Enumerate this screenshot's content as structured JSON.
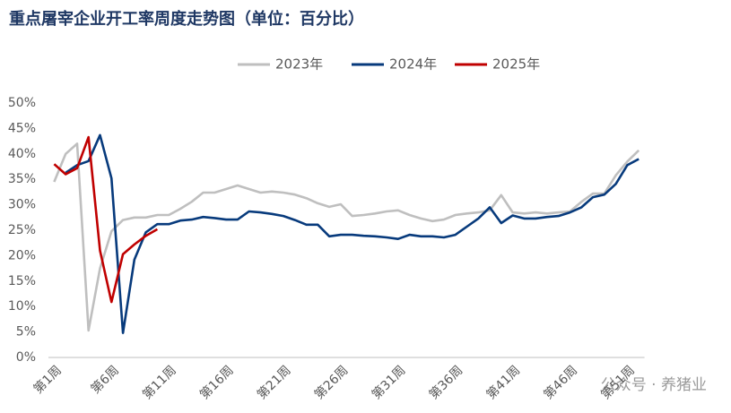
{
  "chart_data": {
    "type": "line",
    "title": "重点屠宰企业开工率周度走势图（单位：百分比）",
    "watermark": "公众号 · 养猪业",
    "categories": [
      "第1周",
      null,
      null,
      null,
      null,
      "第6周",
      null,
      null,
      null,
      null,
      "第11周",
      null,
      null,
      null,
      null,
      "第16周",
      null,
      null,
      null,
      null,
      "第21周",
      null,
      null,
      null,
      null,
      "第26周",
      null,
      null,
      null,
      null,
      "第31周",
      null,
      null,
      null,
      null,
      "第36周",
      null,
      null,
      null,
      null,
      "第41周",
      null,
      null,
      null,
      null,
      "第46周",
      null,
      null,
      null,
      null,
      "第51周",
      null
    ],
    "series": [
      {
        "name": "2023年",
        "color": "#bfbfbf",
        "values": [
          34.5,
          40,
          42,
          5.3,
          17.5,
          24.8,
          27,
          27.5,
          27.5,
          28,
          28,
          29.2,
          30.6,
          32.4,
          32.4,
          33.1,
          33.8,
          33.1,
          32.4,
          32.6,
          32.4,
          32,
          31.3,
          30.3,
          29.6,
          30.1,
          27.8,
          28,
          28.3,
          28.7,
          28.9,
          28,
          27.3,
          26.8,
          27.1,
          28,
          28.3,
          28.5,
          28.9,
          31.9,
          28.5,
          28.3,
          28.5,
          28.3,
          28.5,
          28.7,
          30.6,
          32.2,
          32.2,
          35.8,
          38.5,
          40.7
        ]
      },
      {
        "name": "2024年",
        "color": "#073a7c",
        "values": [
          null,
          36.3,
          37.8,
          38.6,
          43.7,
          35.2,
          4.8,
          19.2,
          24.6,
          26.2,
          26.2,
          26.9,
          27.1,
          27.6,
          27.4,
          27.1,
          27.1,
          28.7,
          28.5,
          28.2,
          27.8,
          27,
          26.1,
          26.1,
          23.8,
          24.1,
          24.1,
          23.9,
          23.8,
          23.6,
          23.3,
          24.1,
          23.8,
          23.8,
          23.6,
          24.1,
          25.7,
          27.3,
          29.5,
          26.4,
          27.9,
          27.3,
          27.3,
          27.6,
          27.8,
          28.5,
          29.5,
          31.5,
          32,
          34.1,
          37.8,
          39
        ]
      },
      {
        "name": "2025年",
        "color": "#c00000",
        "values": [
          38,
          36,
          37.2,
          43.3,
          21,
          10.9,
          20.3,
          22.2,
          23.9,
          25.2,
          null,
          null,
          null,
          null,
          null,
          null,
          null,
          null,
          null,
          null,
          null,
          null,
          null,
          null,
          null,
          null,
          null,
          null,
          null,
          null,
          null,
          null,
          null,
          null,
          null,
          null,
          null,
          null,
          null,
          null,
          null,
          null,
          null,
          null,
          null,
          null,
          null,
          null,
          null,
          null,
          null,
          null
        ]
      }
    ],
    "ylim": [
      0,
      50
    ],
    "yticks": [
      {
        "value": 0,
        "label": "0%"
      },
      {
        "value": 5,
        "label": "5%"
      },
      {
        "value": 10,
        "label": "10%"
      },
      {
        "value": 15,
        "label": "15%"
      },
      {
        "value": 20,
        "label": "20%"
      },
      {
        "value": 25,
        "label": "25%"
      },
      {
        "value": 30,
        "label": "30%"
      },
      {
        "value": 35,
        "label": "35%"
      },
      {
        "value": 40,
        "label": "40%"
      },
      {
        "value": 45,
        "label": "45%"
      },
      {
        "value": 50,
        "label": "50%"
      }
    ],
    "grid": false,
    "legend": "top"
  }
}
